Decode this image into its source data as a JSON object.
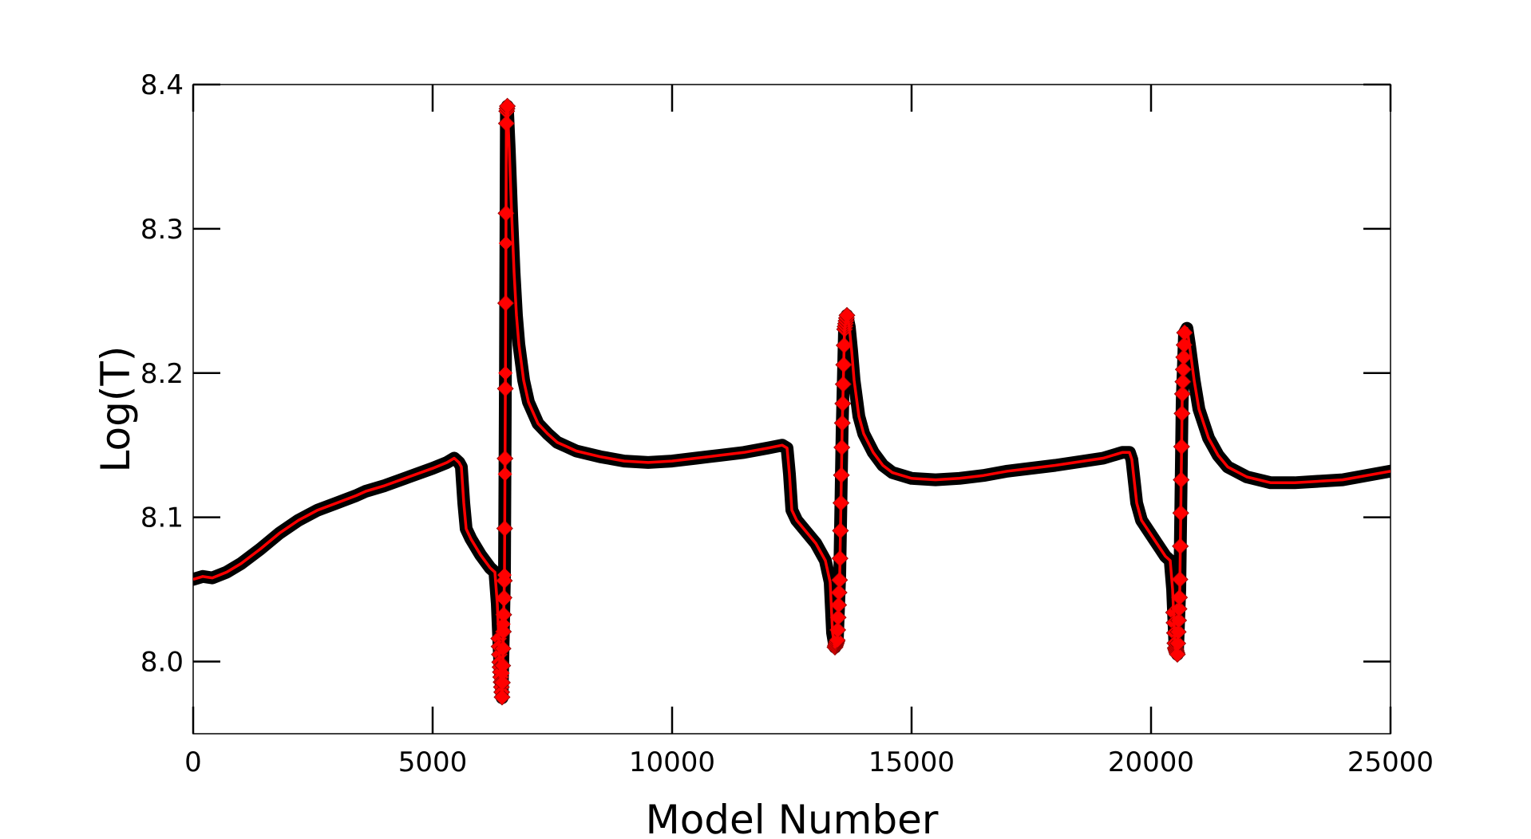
{
  "chart_data": {
    "type": "line",
    "xlabel": "Model Number",
    "ylabel": "Log(T)",
    "xlim": [
      0,
      25000
    ],
    "ylim": [
      7.95,
      8.4
    ],
    "xticks": [
      0,
      5000,
      10000,
      15000,
      20000,
      25000
    ],
    "xtick_labels": [
      "0",
      "5000",
      "10000",
      "15000",
      "20000",
      "25000"
    ],
    "yticks": [
      8.0,
      8.1,
      8.2,
      8.3,
      8.4
    ],
    "ytick_labels": [
      "8.0",
      "8.1",
      "8.2",
      "8.3",
      "8.4"
    ],
    "grid": false,
    "colors": {
      "line": "#ff0000",
      "marker_dense": "#000000",
      "marker_sparse": "#ff0000",
      "axes": "#000000"
    },
    "series": [
      {
        "x": [
          0,
          200,
          400,
          700,
          1000,
          1400,
          1800,
          2200,
          2600,
          3000,
          3400,
          3600,
          4000,
          4500,
          5000,
          5300,
          5450,
          5550,
          5600,
          5650,
          5700,
          5800,
          6000,
          6200,
          6300,
          6350,
          6400,
          6450,
          6500,
          6520,
          6540,
          6560,
          6580,
          6600,
          6650,
          6700,
          6750,
          6800,
          6900,
          7000,
          7200,
          7400,
          7600,
          7800,
          8000,
          8500,
          9000,
          9500,
          10000,
          10500,
          11000,
          11500,
          12000,
          12300,
          12400,
          12450,
          12500,
          12600,
          12800,
          13000,
          13200,
          13300,
          13350,
          13400,
          13450,
          13500,
          13550,
          13600,
          13650,
          13700,
          13750,
          13800,
          13900,
          14000,
          14200,
          14400,
          14600,
          15000,
          15500,
          16000,
          16500,
          17000,
          18000,
          19000,
          19400,
          19550,
          19600,
          19700,
          19800,
          20000,
          20200,
          20300,
          20400,
          20450,
          20500,
          20550,
          20600,
          20650,
          20700,
          20750,
          20800,
          20900,
          21000,
          21200,
          21400,
          21600,
          22000,
          22500,
          23000,
          24000,
          25000
        ],
        "y": [
          8.057,
          8.059,
          8.058,
          8.062,
          8.068,
          8.078,
          8.089,
          8.098,
          8.105,
          8.11,
          8.115,
          8.118,
          8.122,
          8.128,
          8.134,
          8.138,
          8.141,
          8.138,
          8.135,
          8.11,
          8.092,
          8.085,
          8.074,
          8.065,
          8.062,
          8.04,
          8.0,
          7.975,
          8.06,
          8.2,
          8.38,
          8.385,
          8.37,
          8.355,
          8.31,
          8.27,
          8.24,
          8.22,
          8.195,
          8.18,
          8.165,
          8.158,
          8.152,
          8.149,
          8.146,
          8.142,
          8.139,
          8.138,
          8.139,
          8.141,
          8.143,
          8.145,
          8.148,
          8.15,
          8.148,
          8.13,
          8.105,
          8.098,
          8.09,
          8.082,
          8.07,
          8.055,
          8.02,
          8.01,
          8.015,
          8.06,
          8.16,
          8.23,
          8.24,
          8.232,
          8.215,
          8.195,
          8.17,
          8.158,
          8.145,
          8.136,
          8.131,
          8.127,
          8.126,
          8.127,
          8.129,
          8.132,
          8.136,
          8.141,
          8.145,
          8.145,
          8.14,
          8.11,
          8.098,
          8.088,
          8.078,
          8.073,
          8.07,
          8.05,
          8.01,
          8.005,
          8.05,
          8.18,
          8.228,
          8.231,
          8.22,
          8.195,
          8.175,
          8.155,
          8.143,
          8.135,
          8.128,
          8.124,
          8.124,
          8.126,
          8.132
        ]
      }
    ]
  }
}
